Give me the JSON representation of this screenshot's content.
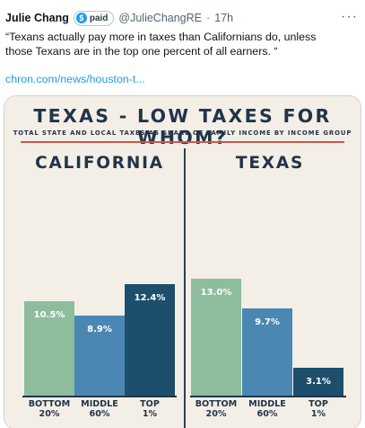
{
  "tweet": {
    "author_name": "Julie Chang",
    "badge_icon": "dollar-icon",
    "badge_label": "paid",
    "handle": "@JulieChangRE",
    "separator": "·",
    "time": "17h",
    "more_icon": "more-icon",
    "text": "“Texans actually pay more in taxes than Californians do, unless those Texans are in the top one percent of all earners. “",
    "link_text": "chron.com/news/houston-t..."
  },
  "chart_data": {
    "type": "bar",
    "title": "TEXAS - LOW TAXES FOR WHOM?",
    "subtitle": "TOTAL STATE AND LOCAL TAXES AS SHARE OF FAMILY INCOME BY INCOME GROUP",
    "ylim": [
      0,
      15
    ],
    "grid": false,
    "categories": [
      {
        "line1": "BOTTOM",
        "line2": "20%"
      },
      {
        "line1": "MIDDLE",
        "line2": "60%"
      },
      {
        "line1": "TOP",
        "line2": "1%"
      }
    ],
    "groups": [
      {
        "name": "CALIFORNIA",
        "values": [
          10.5,
          8.9,
          12.4
        ],
        "labels": [
          "10.5%",
          "8.9%",
          "12.4%"
        ]
      },
      {
        "name": "TEXAS",
        "values": [
          13.0,
          9.7,
          3.1
        ],
        "labels": [
          "13.0%",
          "9.7%",
          "3.1%"
        ]
      }
    ],
    "colors": [
      "#8dbd9d",
      "#4b87b3",
      "#1d4f6c"
    ],
    "value_label_color": "#ffffff",
    "text_color": "#22344a"
  }
}
